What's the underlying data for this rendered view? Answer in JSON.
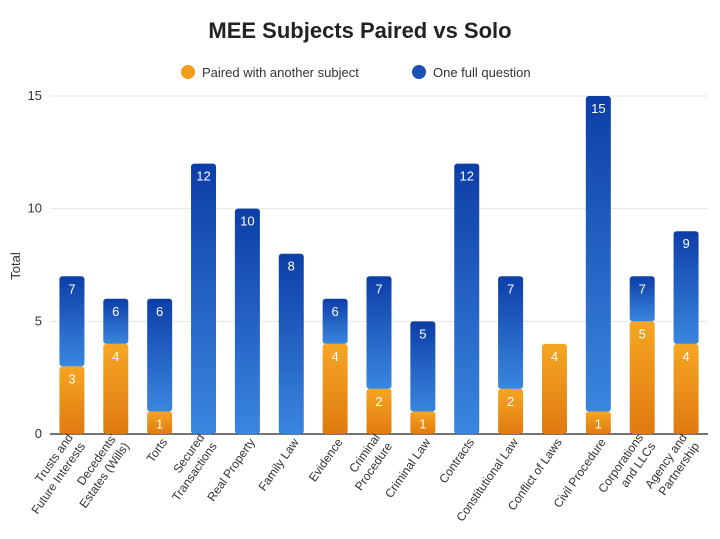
{
  "chart_data": {
    "type": "bar",
    "stacked": true,
    "title": "MEE Subjects Paired vs Solo",
    "xlabel": "",
    "ylabel": "Total",
    "ylim": [
      0,
      15
    ],
    "yticks": [
      "0",
      "5",
      "10",
      "15"
    ],
    "legend_position": "top",
    "categories": [
      [
        "Trusts and",
        "Future Interests"
      ],
      [
        "Decedents'",
        "Estates (Wills)"
      ],
      [
        "Torts"
      ],
      [
        "Secured",
        "Transactions"
      ],
      [
        "Real Property"
      ],
      [
        "Family Law"
      ],
      [
        "Evidence"
      ],
      [
        "Criminal",
        "Procedure"
      ],
      [
        "Criminal Law"
      ],
      [
        "Contracts"
      ],
      [
        "Constitutional Law"
      ],
      [
        "Conflict of Laws"
      ],
      [
        "Civil Procedure"
      ],
      [
        "Corporations",
        "and LLCs"
      ],
      [
        "Agency and",
        "Partnership"
      ]
    ],
    "series": [
      {
        "name": "Paired with another subject",
        "color": "#F39C1A",
        "values": [
          3,
          4,
          1,
          0,
          0,
          0,
          4,
          2,
          1,
          0,
          2,
          4,
          1,
          5,
          4
        ],
        "labels": [
          "3",
          "4",
          "1",
          "",
          "",
          "",
          "4",
          "2",
          "1",
          "",
          "2",
          "4",
          "1",
          "5",
          "4"
        ]
      },
      {
        "name": "One full question",
        "color": "#1A4FB4",
        "totals": [
          7,
          6,
          6,
          12,
          10,
          8,
          6,
          7,
          5,
          12,
          7,
          4,
          15,
          7,
          9
        ],
        "labels": [
          "7",
          "6",
          "6",
          "12",
          "10",
          "8",
          "6",
          "7",
          "5",
          "12",
          "7",
          "",
          "15",
          "7",
          "9"
        ]
      }
    ]
  }
}
